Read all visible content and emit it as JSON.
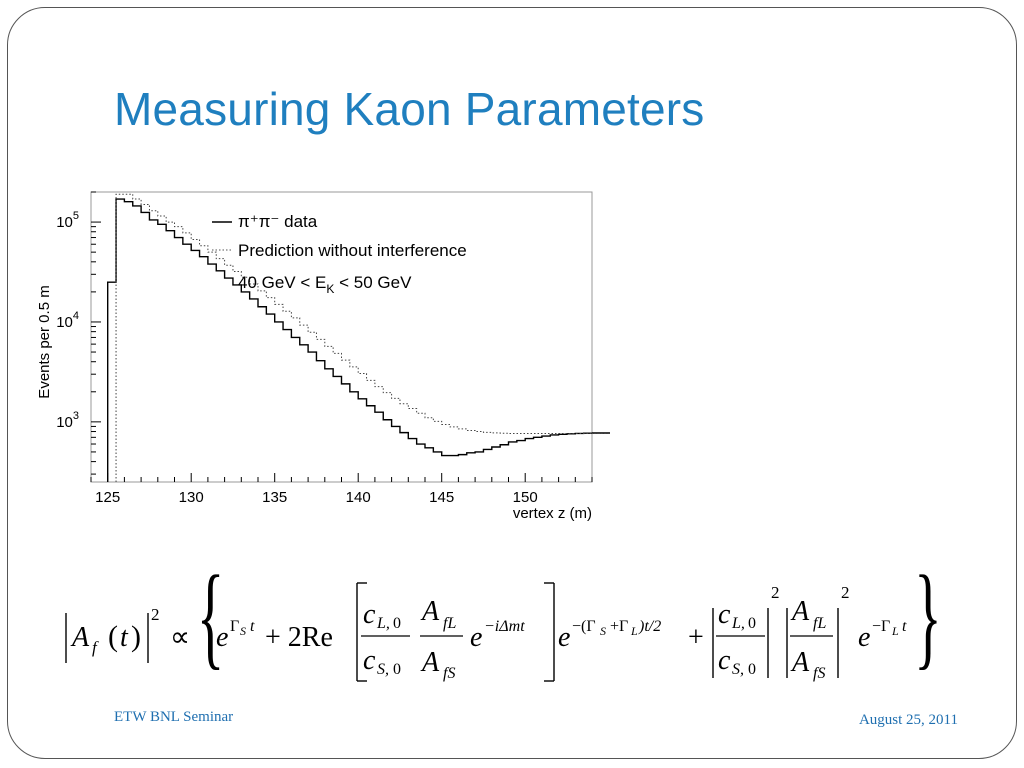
{
  "slide": {
    "title": "Measuring Kaon Parameters",
    "footer_left": "ETW BNL Seminar",
    "footer_right": "August 25, 2011",
    "accent_color": "#1F7FBF"
  },
  "chart_data": {
    "type": "line",
    "xlabel": "vertex z (m)",
    "ylabel": "Events per 0.5 m",
    "xlim": [
      124,
      154
    ],
    "ylim": [
      250,
      200000
    ],
    "y_scale": "log",
    "x_ticks": [
      125,
      130,
      135,
      140,
      145,
      150
    ],
    "y_ticks": [
      {
        "value": 1000,
        "base": "10",
        "exp": "3"
      },
      {
        "value": 10000,
        "base": "10",
        "exp": "4"
      },
      {
        "value": 100000,
        "base": "10",
        "exp": "5"
      }
    ],
    "legend": {
      "placement": "top-right",
      "entries": [
        "π⁺π⁻ data",
        "Prediction without interference"
      ],
      "note_prefix": "40 GeV < E",
      "note_sub": "K",
      "note_suffix": " < 50 GeV"
    },
    "bin_width": 0.5,
    "series": [
      {
        "name": "π⁺π⁻ data",
        "style": "solid",
        "x0": 125.0,
        "values": [
          25000,
          170000,
          160000,
          145000,
          125000,
          105000,
          95000,
          82000,
          70000,
          60000,
          52000,
          45000,
          38000,
          32500,
          27500,
          23500,
          20000,
          17000,
          14200,
          12000,
          10000,
          8400,
          7000,
          5900,
          5000,
          4100,
          3400,
          2850,
          2400,
          2000,
          1700,
          1450,
          1250,
          1050,
          900,
          780,
          680,
          600,
          550,
          500,
          460,
          460,
          470,
          490,
          500,
          530,
          560,
          590,
          630,
          650,
          680,
          700,
          720,
          740,
          750,
          760,
          765,
          770,
          770,
          770,
          770,
          775
        ]
      },
      {
        "name": "Prediction without interference",
        "style": "dotted",
        "x0": 125.5,
        "values": [
          190000,
          190000,
          170000,
          150000,
          130000,
          115000,
          100000,
          90000,
          78000,
          67000,
          58000,
          50000,
          43000,
          37000,
          32000,
          28000,
          24000,
          20500,
          17500,
          15000,
          12800,
          11000,
          9300,
          7900,
          6700,
          5700,
          4850,
          4150,
          3550,
          3050,
          2600,
          2250,
          1960,
          1720,
          1520,
          1360,
          1220,
          1100,
          1010,
          940,
          890,
          850,
          820,
          800,
          785,
          775,
          770,
          765,
          765,
          765,
          765,
          765,
          765,
          765,
          765,
          765,
          765,
          765,
          765,
          765
        ]
      }
    ]
  }
}
